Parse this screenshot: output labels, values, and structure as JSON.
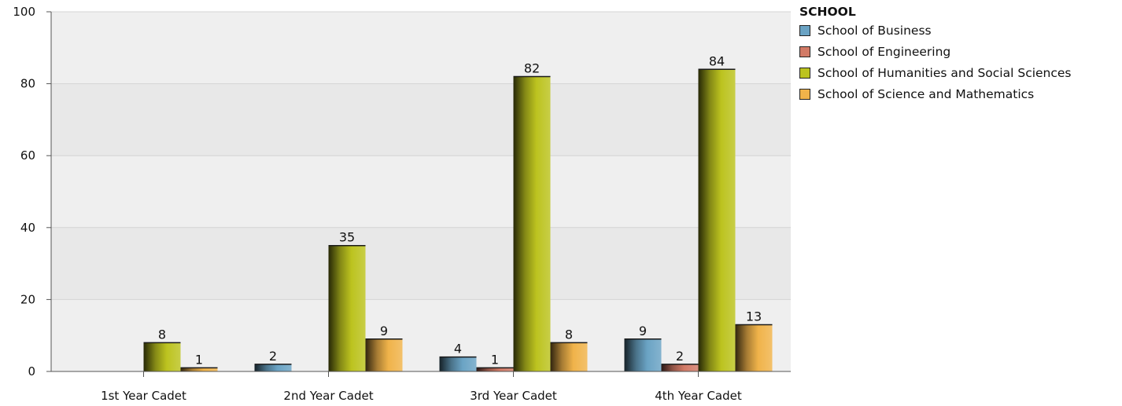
{
  "chart_data": {
    "type": "bar",
    "categories": [
      "1st Year Cadet",
      "2nd Year Cadet",
      "3rd Year Cadet",
      "4th Year Cadet"
    ],
    "ylim": [
      0,
      100
    ],
    "yticks": [
      0,
      20,
      40,
      60,
      80,
      100
    ],
    "grid": true,
    "legend_title": "SCHOOL",
    "legend_position": "top-right",
    "series": [
      {
        "name": "School of Business",
        "color": "#6aa3c4",
        "values": [
          null,
          2,
          4,
          9
        ]
      },
      {
        "name": "School of Engineering",
        "color": "#d27a66",
        "values": [
          null,
          null,
          1,
          2
        ]
      },
      {
        "name": "School of Humanities and Social Sciences",
        "color": "#bcc31f",
        "values": [
          8,
          35,
          82,
          84
        ]
      },
      {
        "name": "School of Science and Mathematics",
        "color": "#f0b34a",
        "values": [
          1,
          9,
          8,
          13
        ]
      }
    ]
  }
}
